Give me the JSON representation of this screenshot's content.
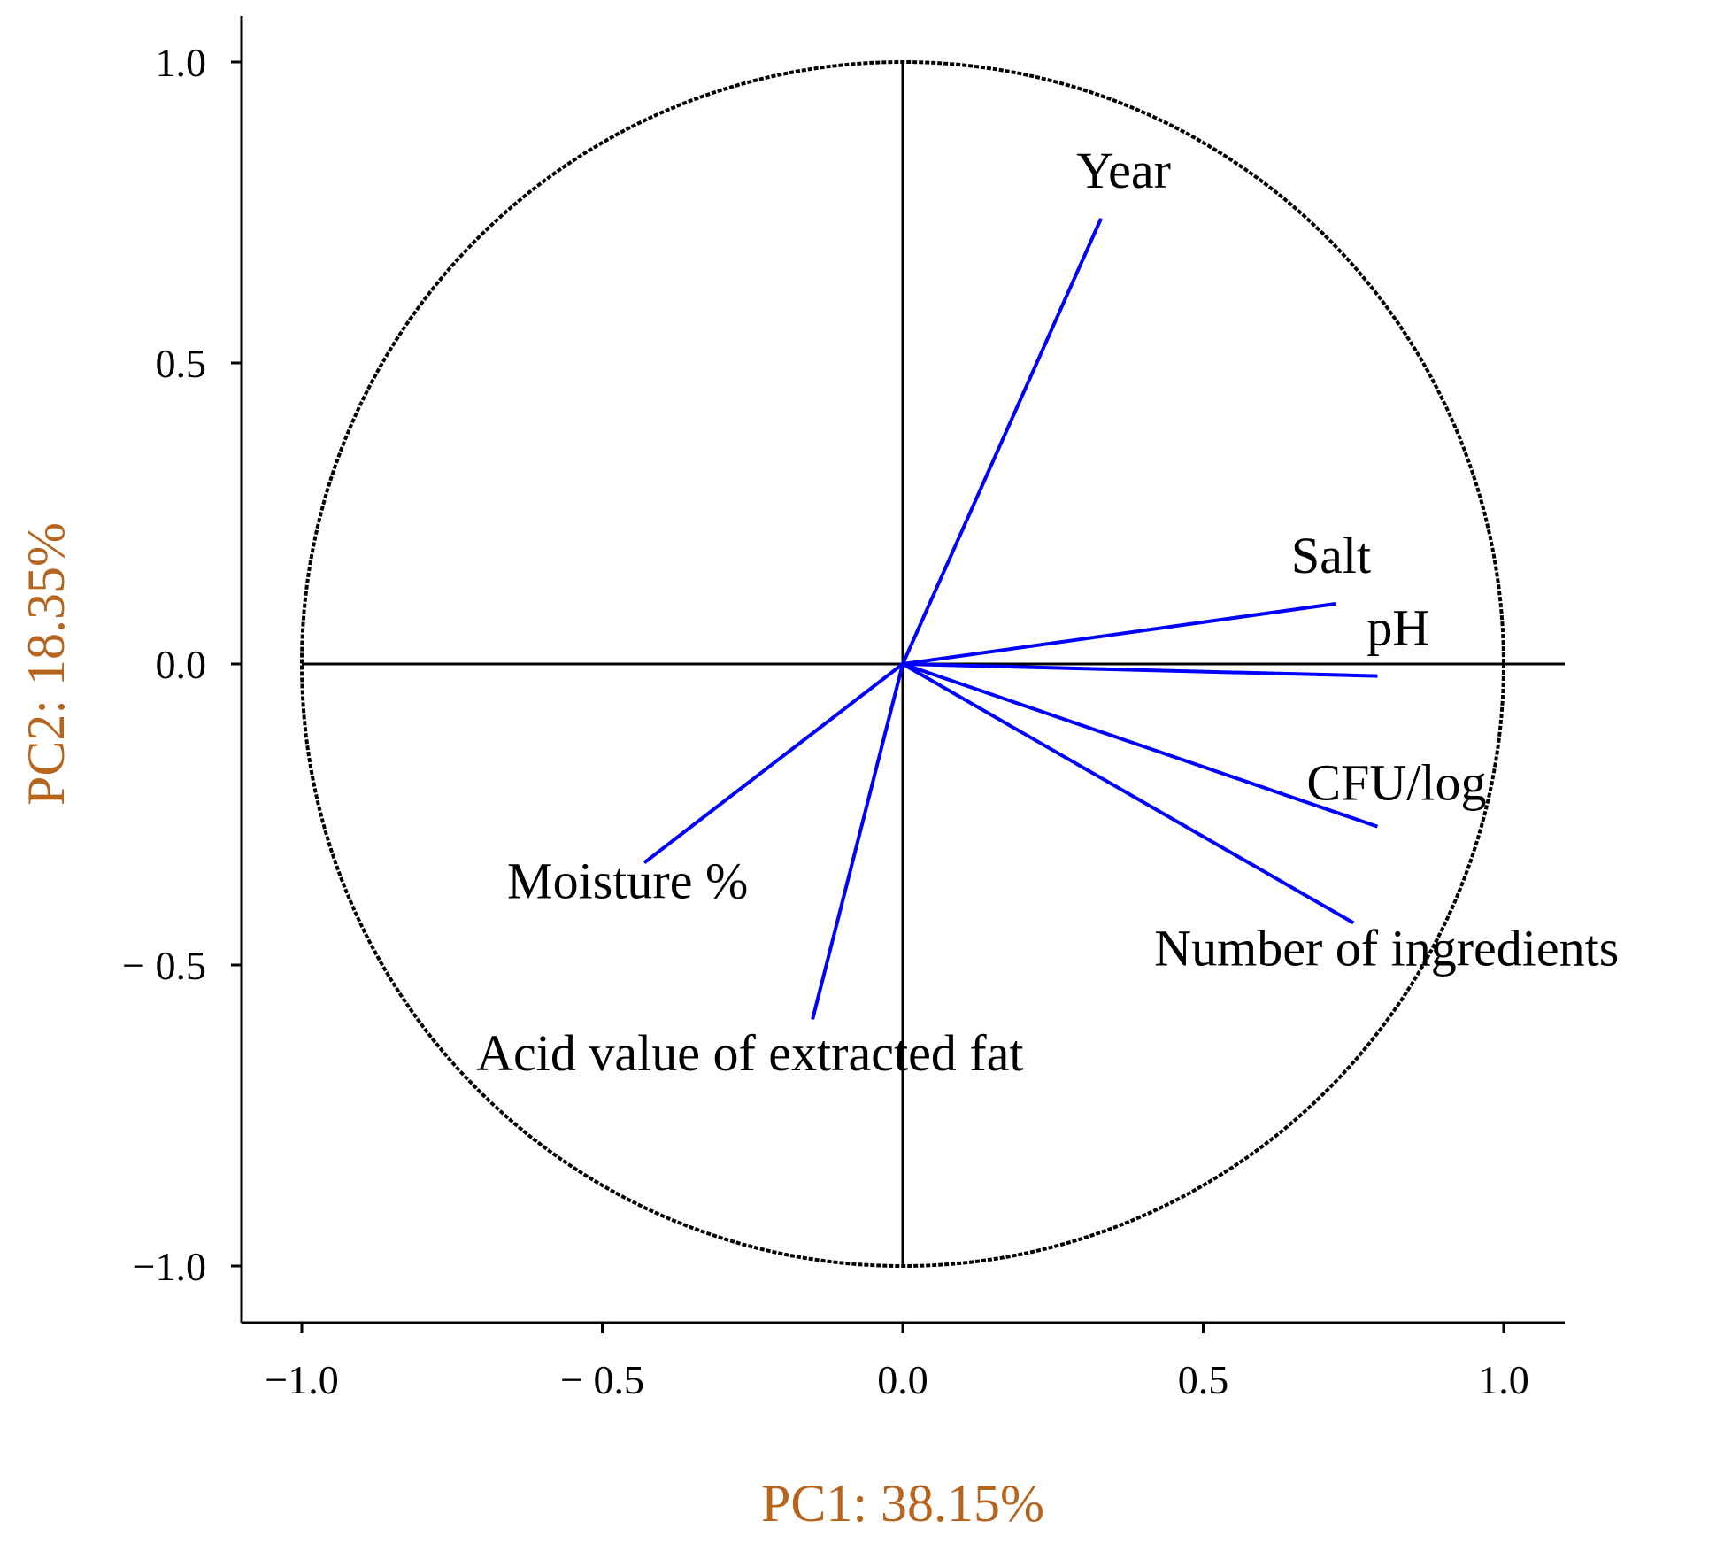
{
  "chart_data": {
    "type": "biplot",
    "title": "",
    "xlabel": "PC1: 38.15%",
    "ylabel": "PC2: 18.35%",
    "xlim": [
      -1.1,
      1.1
    ],
    "ylim": [
      -1.1,
      1.1
    ],
    "xticks": [
      {
        "value": -1.0,
        "label": "−1.0"
      },
      {
        "value": -0.5,
        "label": "− 0.5"
      },
      {
        "value": 0.0,
        "label": "0.0"
      },
      {
        "value": 0.5,
        "label": "0.5"
      },
      {
        "value": 1.0,
        "label": "1.0"
      }
    ],
    "yticks": [
      {
        "value": 1.0,
        "label": "1.0"
      },
      {
        "value": 0.5,
        "label": "0.5"
      },
      {
        "value": 0.0,
        "label": "0.0"
      },
      {
        "value": -0.5,
        "label": "− 0.5"
      },
      {
        "value": -1.0,
        "label": "−1.0"
      }
    ],
    "correlation_circle_radius": 1.0,
    "vectors": [
      {
        "name": "Year",
        "x": 0.33,
        "y": 0.74
      },
      {
        "name": "Salt",
        "x": 0.72,
        "y": 0.1
      },
      {
        "name": "pH",
        "x": 0.79,
        "y": -0.02
      },
      {
        "name": "CFU/log",
        "x": 0.79,
        "y": -0.27
      },
      {
        "name": "Number of ingredients",
        "x": 0.75,
        "y": -0.43
      },
      {
        "name": "Moisture %",
        "x": -0.43,
        "y": -0.33
      },
      {
        "name": "Acid value of extracted fat",
        "x": -0.15,
        "y": -0.59
      }
    ],
    "colors": {
      "vector": "#0000ff",
      "axis_title": "#b5651d",
      "frame": "#000000"
    }
  }
}
